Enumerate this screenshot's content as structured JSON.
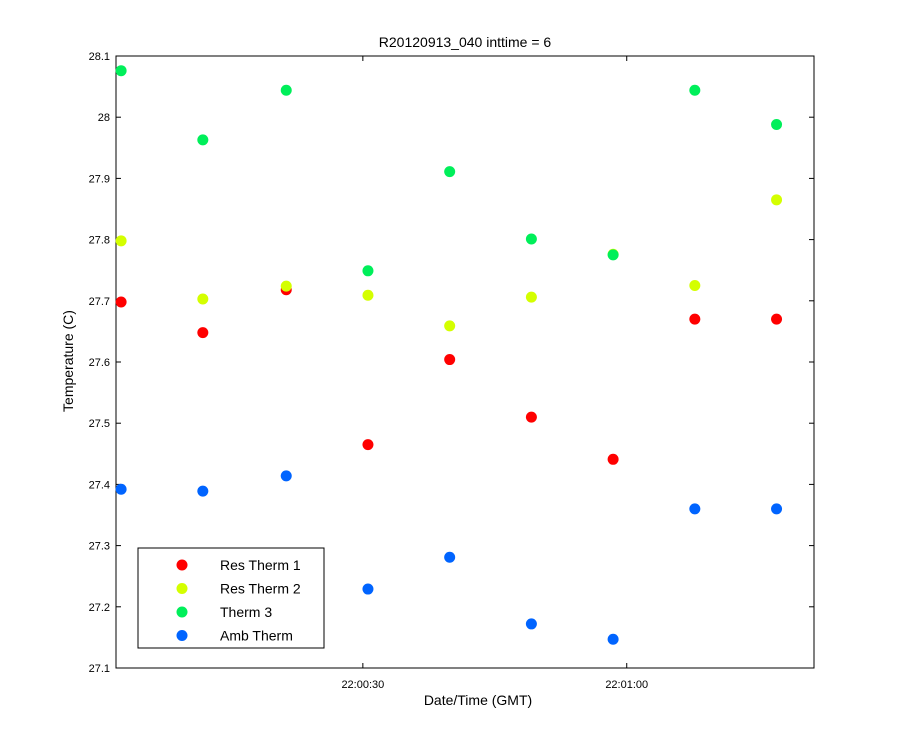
{
  "chart_data": {
    "type": "scatter",
    "title": "R20120913_040 inttime = 6",
    "xlabel": "Date/Time (GMT)",
    "ylabel": "Temperature (C)",
    "xlim": [
      0,
      41
    ],
    "ylim": [
      27.1,
      28.1
    ],
    "x_ticks": [
      {
        "value": 14.5,
        "label": "22:00:30"
      },
      {
        "value": 30.0,
        "label": "22:01:00"
      }
    ],
    "y_ticks": [
      {
        "value": 27.1,
        "label": "27.1"
      },
      {
        "value": 27.2,
        "label": "27.2"
      },
      {
        "value": 27.3,
        "label": "27.3"
      },
      {
        "value": 27.4,
        "label": "27.4"
      },
      {
        "value": 27.5,
        "label": "27.5"
      },
      {
        "value": 27.6,
        "label": "27.6"
      },
      {
        "value": 27.7,
        "label": "27.7"
      },
      {
        "value": 27.8,
        "label": "27.8"
      },
      {
        "value": 27.9,
        "label": "27.9"
      },
      {
        "value": 28.0,
        "label": "28"
      },
      {
        "value": 28.1,
        "label": "28.1"
      }
    ],
    "x": [
      0.3,
      5.1,
      10.0,
      14.8,
      19.6,
      24.4,
      29.2,
      34.0,
      38.8
    ],
    "series": [
      {
        "name": "Res Therm 1",
        "color": "#ff0000",
        "values": [
          27.698,
          27.648,
          27.718,
          27.465,
          27.604,
          27.51,
          27.441,
          27.67,
          27.67
        ]
      },
      {
        "name": "Res Therm 2",
        "color": "#d4ff00",
        "values": [
          27.798,
          27.703,
          27.724,
          27.709,
          27.659,
          27.706,
          27.776,
          27.725,
          27.865
        ]
      },
      {
        "name": "Therm 3",
        "color": "#00ef5a",
        "values": [
          28.076,
          27.963,
          28.044,
          27.749,
          27.911,
          27.801,
          27.775,
          28.044,
          27.988
        ]
      },
      {
        "name": "Amb Therm",
        "color": "#0064ff",
        "values": [
          27.392,
          27.389,
          27.414,
          27.229,
          27.281,
          27.172,
          27.147,
          27.36,
          27.36
        ]
      }
    ],
    "grid": false,
    "legend_position": "bottom-left"
  }
}
